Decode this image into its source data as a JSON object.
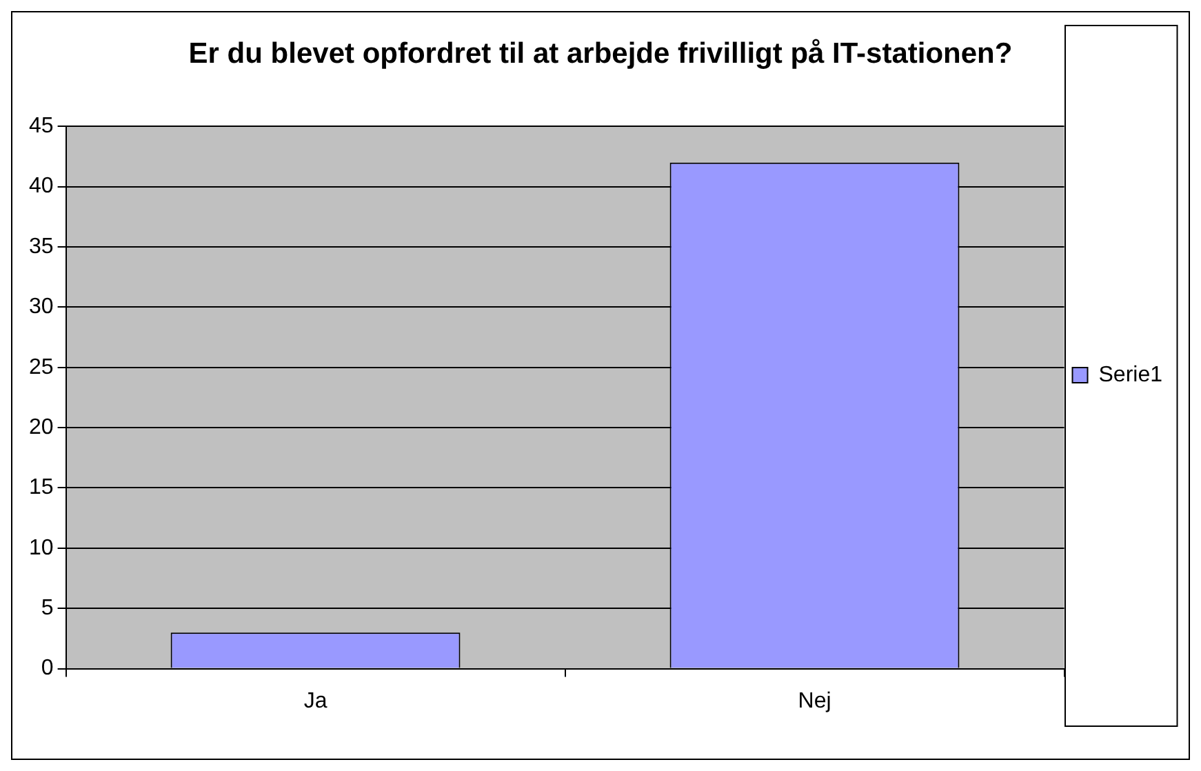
{
  "chart_data": {
    "type": "bar",
    "title": "Er du blevet opfordret til at arbejde frivilligt på IT-stationen?",
    "categories": [
      "Ja",
      "Nej"
    ],
    "series": [
      {
        "name": "Serie1",
        "color": "#9999ff",
        "values": [
          3,
          42
        ]
      }
    ],
    "ylim": [
      0,
      45
    ],
    "yticks": [
      0,
      5,
      10,
      15,
      20,
      25,
      30,
      35,
      40,
      45
    ],
    "grid": "y",
    "legend": "right"
  }
}
